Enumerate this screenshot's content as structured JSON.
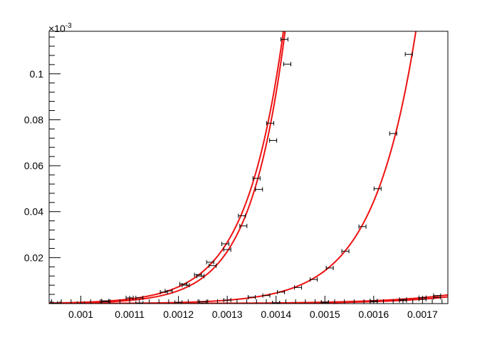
{
  "chart_data": {
    "type": "scatter",
    "title": "",
    "xlabel": "",
    "ylabel": "",
    "y_exponent_label": "×10",
    "y_exponent_power": "-3",
    "xlim": [
      0.000935,
      0.001752
    ],
    "ylim": [
      0,
      0.0001185
    ],
    "grid": false,
    "legend": "none",
    "x_tick_labels": [
      {
        "value": 0.001,
        "label": "0.001"
      },
      {
        "value": 0.0011,
        "label": "0.0011"
      },
      {
        "value": 0.0012,
        "label": "0.0012"
      },
      {
        "value": 0.0013,
        "label": "0.0013"
      },
      {
        "value": 0.0014,
        "label": "0.0014"
      },
      {
        "value": 0.0015,
        "label": "0.0015"
      },
      {
        "value": 0.0016,
        "label": "0.0016"
      },
      {
        "value": 0.0017,
        "label": "0.0017"
      }
    ],
    "y_tick_labels": [
      {
        "value": 2e-05,
        "label": "0.02"
      },
      {
        "value": 4e-05,
        "label": "0.04"
      },
      {
        "value": 6e-05,
        "label": "0.06"
      },
      {
        "value": 8e-05,
        "label": "0.08"
      },
      {
        "value": 0.0001,
        "label": "0.1"
      }
    ],
    "colors": {
      "fit_line": "#ee1111",
      "points": "#000000"
    },
    "series": [
      {
        "points": [
          {
            "x": 0.000945,
            "y": 2e-07
          },
          {
            "x": 0.00105,
            "y": 1.2e-06
          },
          {
            "x": 0.0011,
            "y": 2.5e-06
          },
          {
            "x": 0.00117,
            "y": 5e-06
          },
          {
            "x": 0.00121,
            "y": 8.5e-06
          },
          {
            "x": 0.00124,
            "y": 1.25e-05
          },
          {
            "x": 0.001265,
            "y": 1.8e-05
          },
          {
            "x": 0.001296,
            "y": 2.6e-05
          },
          {
            "x": 0.00133,
            "y": 3.82e-05
          },
          {
            "x": 0.00136,
            "y": 5.45e-05
          },
          {
            "x": 0.001388,
            "y": 7.85e-05
          },
          {
            "x": 0.001417,
            "y": 0.000115
          }
        ]
      },
      {
        "points": [
          {
            "x": 0.00095,
            "y": 1e-07
          },
          {
            "x": 0.00105,
            "y": 8e-07
          },
          {
            "x": 0.00112,
            "y": 2.5e-06
          },
          {
            "x": 0.00118,
            "y": 5.5e-06
          },
          {
            "x": 0.001215,
            "y": 8e-06
          },
          {
            "x": 0.001245,
            "y": 1.2e-05
          },
          {
            "x": 0.00127,
            "y": 1.65e-05
          },
          {
            "x": 0.0013,
            "y": 2.35e-05
          },
          {
            "x": 0.001333,
            "y": 3.38e-05
          },
          {
            "x": 0.001365,
            "y": 4.97e-05
          },
          {
            "x": 0.001394,
            "y": 7.1e-05
          },
          {
            "x": 0.001423,
            "y": 0.0001042
          }
        ]
      },
      {
        "points": [
          {
            "x": 0.001,
            "y": 5e-08
          },
          {
            "x": 0.00112,
            "y": 2e-07
          },
          {
            "x": 0.0012,
            "y": 5e-07
          },
          {
            "x": 0.00125,
            "y": 8e-07
          },
          {
            "x": 0.0013,
            "y": 1.5e-06
          },
          {
            "x": 0.00135,
            "y": 2.8e-06
          },
          {
            "x": 0.00138,
            "y": 3.5e-06
          },
          {
            "x": 0.00141,
            "y": 5e-06
          },
          {
            "x": 0.001445,
            "y": 7e-06
          },
          {
            "x": 0.001477,
            "y": 1.05e-05
          },
          {
            "x": 0.00151,
            "y": 1.55e-05
          },
          {
            "x": 0.001542,
            "y": 2.28e-05
          },
          {
            "x": 0.001577,
            "y": 3.35e-05
          },
          {
            "x": 0.001608,
            "y": 5e-05
          },
          {
            "x": 0.00164,
            "y": 7.4e-05
          },
          {
            "x": 0.001672,
            "y": 0.0001085
          }
        ]
      },
      {
        "points": [
          {
            "x": 0.00125,
            "y": 1e-07
          },
          {
            "x": 0.0014,
            "y": 3e-07
          },
          {
            "x": 0.0015,
            "y": 6e-07
          },
          {
            "x": 0.0016,
            "y": 1.2e-06
          },
          {
            "x": 0.00166,
            "y": 1.8e-06
          },
          {
            "x": 0.0017,
            "y": 2.6e-06
          },
          {
            "x": 0.00173,
            "y": 3.5e-06
          }
        ]
      },
      {
        "points": [
          {
            "x": 0.00125,
            "y": 5e-08
          },
          {
            "x": 0.0014,
            "y": 2e-07
          },
          {
            "x": 0.0015,
            "y": 4e-07
          },
          {
            "x": 0.0016,
            "y": 8e-07
          },
          {
            "x": 0.00166,
            "y": 1.3e-06
          },
          {
            "x": 0.0017,
            "y": 1.9e-06
          },
          {
            "x": 0.00173,
            "y": 2.7e-06
          }
        ]
      }
    ]
  }
}
